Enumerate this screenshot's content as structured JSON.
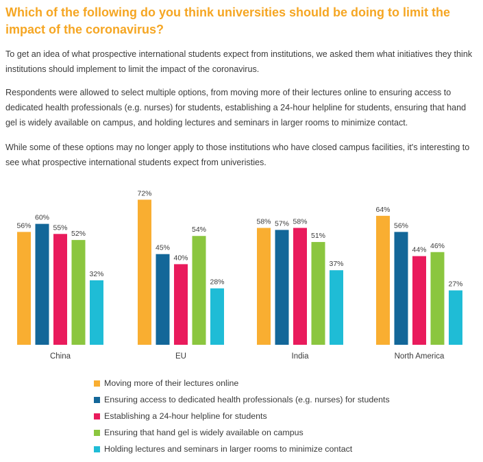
{
  "title": "Which of the following do you think universities should be doing to limit the impact of the coronavirus?",
  "paragraphs": [
    "To get an idea of what prospective international students expect from institutions, we asked them what initiatives they think institutions should implement to limit the impact of the coronavirus.",
    "Respondents were allowed to select multiple options, from moving more of their lectures online to ensuring access to dedicated health professionals (e.g. nurses) for students, establishing a 24-hour helpline for students, ensuring that hand gel is widely available on campus, and holding lectures and seminars in larger rooms to minimize contact.",
    "While some of these options may no longer apply to those institutions who have closed campus facilities, it's interesting to see what prospective international students expect from univeristies."
  ],
  "chart_data": {
    "type": "bar",
    "categories": [
      "China",
      "EU",
      "India",
      "North America"
    ],
    "series": [
      {
        "name": "Moving more of their lectures online",
        "color": "#f9ae31",
        "values": [
          56,
          72,
          58,
          64
        ]
      },
      {
        "name": "Ensuring access to dedicated health professionals (e.g. nurses) for students",
        "color": "#136799",
        "values": [
          60,
          45,
          57,
          56
        ]
      },
      {
        "name": "Establishing a 24-hour helpline for students",
        "color": "#e91b5c",
        "values": [
          55,
          40,
          58,
          44
        ]
      },
      {
        "name": "Ensuring that hand gel is widely available on campus",
        "color": "#8bc63f",
        "values": [
          52,
          54,
          51,
          46
        ]
      },
      {
        "name": "Holding lectures and seminars in larger rooms to minimize contact",
        "color": "#1fbcd6",
        "values": [
          32,
          28,
          37,
          27
        ]
      }
    ],
    "value_suffix": "%",
    "ylim": [
      0,
      100
    ],
    "legend_position": "bottom",
    "grid": false
  }
}
